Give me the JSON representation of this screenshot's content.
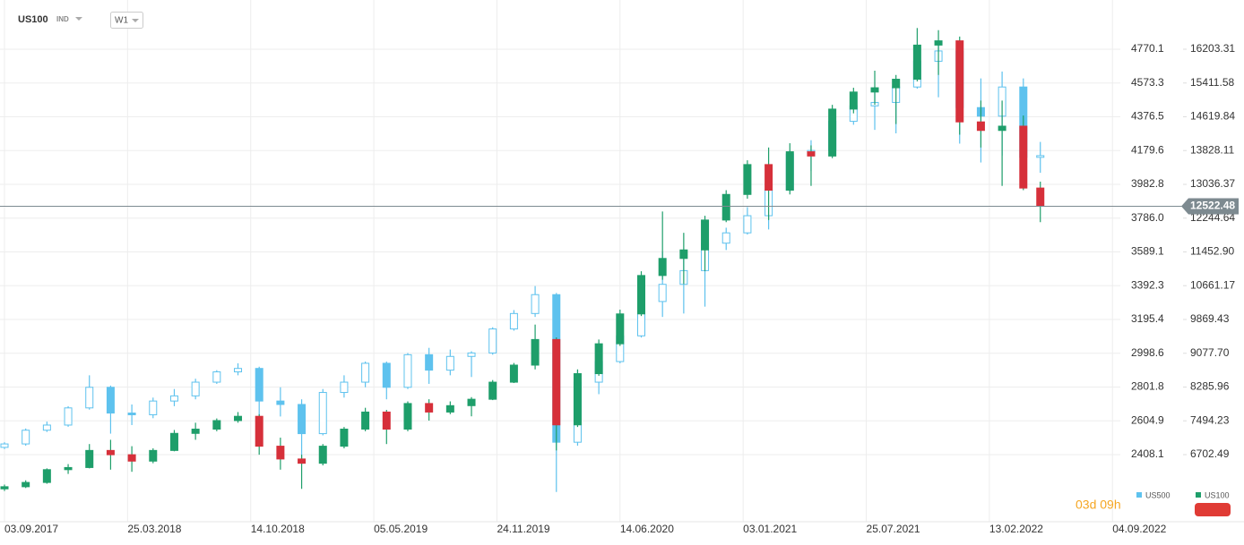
{
  "header": {
    "symbol": "US100",
    "symbol_type": "IND",
    "interval": "W1",
    "countdown": "03d 09h"
  },
  "chart_data": {
    "type": "candlestick",
    "x": [
      0,
      5,
      10,
      15,
      20,
      25,
      30,
      35,
      40,
      45,
      50,
      55,
      60,
      65,
      70,
      75,
      80,
      85,
      90,
      95,
      100,
      105,
      110,
      115,
      120,
      125,
      130,
      135,
      140,
      145,
      150,
      155,
      160,
      165,
      170,
      175,
      180,
      185,
      190,
      195,
      200,
      205,
      210,
      215,
      220,
      225,
      230,
      235,
      240,
      244
    ],
    "xlim": [
      0,
      262
    ],
    "xticks": [
      {
        "value": 0,
        "label": "03.09.2017"
      },
      {
        "value": 29,
        "label": "25.03.2018"
      },
      {
        "value": 58,
        "label": "14.10.2018"
      },
      {
        "value": 87,
        "label": "05.05.2019"
      },
      {
        "value": 116,
        "label": "24.11.2019"
      },
      {
        "value": 145,
        "label": "14.06.2020"
      },
      {
        "value": 174,
        "label": "03.01.2021"
      },
      {
        "value": 203,
        "label": "25.07.2021"
      },
      {
        "value": 232,
        "label": "13.02.2022"
      },
      {
        "value": 261,
        "label": "04.09.2022"
      }
    ],
    "ylim": [
      2058.4,
      5056.9
    ],
    "yticks": [
      2408.1,
      2604.9,
      2801.8,
      2998.6,
      3195.4,
      3392.3,
      3589.1,
      {
        "value": 3786.0,
        "label": "3786.0"
      },
      3982.8,
      4179.6,
      4376.5,
      4573.3,
      4770.1
    ],
    "y2lim": [
      5297.3,
      17356.8
    ],
    "y2ticks": [
      6702.49,
      7494.23,
      8285.96,
      {
        "value": 9077.7,
        "label": "9077.70"
      },
      9869.43,
      10661.17,
      {
        "value": 11452.9,
        "label": "11452.90"
      },
      12244.64,
      13036.37,
      13828.11,
      14619.84,
      15411.58,
      16203.31
    ],
    "grid": true,
    "current_price": 12522.48,
    "series": [
      {
        "name": "US500",
        "color": "#5ec2ee",
        "up_color": "#ffffff",
        "down_color": "#5ec2ee",
        "candles": [
          [
            2450,
            2480,
            2440,
            2470
          ],
          [
            2470,
            2560,
            2460,
            2550
          ],
          [
            2550,
            2600,
            2540,
            2580
          ],
          [
            2580,
            2690,
            2570,
            2680
          ],
          [
            2680,
            2870,
            2670,
            2800
          ],
          [
            2800,
            2810,
            2530,
            2650
          ],
          [
            2650,
            2700,
            2580,
            2640
          ],
          [
            2640,
            2740,
            2620,
            2720
          ],
          [
            2720,
            2790,
            2690,
            2750
          ],
          [
            2750,
            2850,
            2730,
            2830
          ],
          [
            2830,
            2900,
            2820,
            2890
          ],
          [
            2890,
            2940,
            2870,
            2910
          ],
          [
            2910,
            2920,
            2600,
            2720
          ],
          [
            2720,
            2800,
            2630,
            2700
          ],
          [
            2700,
            2730,
            2350,
            2530
          ],
          [
            2530,
            2790,
            2520,
            2770
          ],
          [
            2770,
            2870,
            2740,
            2830
          ],
          [
            2830,
            2950,
            2800,
            2940
          ],
          [
            2940,
            2950,
            2730,
            2800
          ],
          [
            2800,
            3000,
            2790,
            2990
          ],
          [
            2990,
            3030,
            2820,
            2900
          ],
          [
            2900,
            3020,
            2870,
            2980
          ],
          [
            2980,
            3010,
            2860,
            3000
          ],
          [
            3000,
            3150,
            2990,
            3140
          ],
          [
            3140,
            3250,
            3130,
            3230
          ],
          [
            3230,
            3390,
            3210,
            3340
          ],
          [
            3340,
            3350,
            2190,
            2480
          ],
          [
            2480,
            2900,
            2460,
            2830
          ],
          [
            2830,
            3000,
            2760,
            2950
          ],
          [
            2950,
            3230,
            2940,
            3100
          ],
          [
            3100,
            3350,
            3090,
            3300
          ],
          [
            3300,
            3590,
            3210,
            3400
          ],
          [
            3400,
            3550,
            3230,
            3480
          ],
          [
            3480,
            3650,
            3270,
            3640
          ],
          [
            3640,
            3730,
            3600,
            3700
          ],
          [
            3700,
            3850,
            3690,
            3800
          ],
          [
            3800,
            3990,
            3720,
            3950
          ],
          [
            3950,
            4180,
            3940,
            4160
          ],
          [
            4160,
            4240,
            4060,
            4180
          ],
          [
            4180,
            4360,
            4160,
            4350
          ],
          [
            4350,
            4460,
            4330,
            4440
          ],
          [
            4440,
            4550,
            4300,
            4460
          ],
          [
            4460,
            4560,
            4280,
            4550
          ],
          [
            4550,
            4740,
            4540,
            4700
          ],
          [
            4700,
            4810,
            4490,
            4760
          ],
          [
            4760,
            4820,
            4220,
            4430
          ],
          [
            4430,
            4600,
            4110,
            4380
          ],
          [
            4380,
            4640,
            4150,
            4550
          ],
          [
            4550,
            4600,
            4130,
            4140
          ],
          [
            4140,
            4230,
            4050,
            4150
          ]
        ]
      },
      {
        "name": "US100",
        "color": "#1e9e6a",
        "up_color": "#1e9e6a",
        "down_color": "#d6303a",
        "axis": "y2",
        "candles": [
          [
            5900,
            6000,
            5850,
            5950
          ],
          [
            5950,
            6100,
            5920,
            6050
          ],
          [
            6050,
            6380,
            6020,
            6350
          ],
          [
            6350,
            6480,
            6250,
            6400
          ],
          [
            6400,
            6950,
            6380,
            6800
          ],
          [
            6800,
            7050,
            6350,
            6700
          ],
          [
            6700,
            6900,
            6300,
            6550
          ],
          [
            6550,
            6850,
            6500,
            6800
          ],
          [
            6800,
            7280,
            6780,
            7200
          ],
          [
            7200,
            7450,
            7050,
            7300
          ],
          [
            7300,
            7550,
            7250,
            7500
          ],
          [
            7500,
            7700,
            7450,
            7600
          ],
          [
            7600,
            7650,
            6700,
            6900
          ],
          [
            6900,
            7100,
            6350,
            6600
          ],
          [
            6600,
            6700,
            5900,
            6500
          ],
          [
            6500,
            6950,
            6450,
            6900
          ],
          [
            6900,
            7350,
            6850,
            7300
          ],
          [
            7300,
            7800,
            7250,
            7700
          ],
          [
            7700,
            7750,
            6950,
            7300
          ],
          [
            7300,
            7950,
            7250,
            7900
          ],
          [
            7900,
            8000,
            7500,
            7700
          ],
          [
            7700,
            7950,
            7650,
            7850
          ],
          [
            7850,
            8050,
            7600,
            8000
          ],
          [
            8000,
            8450,
            7980,
            8400
          ],
          [
            8400,
            8850,
            8380,
            8800
          ],
          [
            8800,
            9750,
            8700,
            9400
          ],
          [
            9400,
            9450,
            6800,
            7400
          ],
          [
            7400,
            8700,
            7350,
            8600
          ],
          [
            8600,
            9400,
            8550,
            9300
          ],
          [
            9300,
            10100,
            9250,
            10000
          ],
          [
            10000,
            11000,
            9950,
            10900
          ],
          [
            10900,
            12400,
            10800,
            11300
          ],
          [
            11300,
            11900,
            10700,
            11500
          ],
          [
            11500,
            12300,
            11000,
            12200
          ],
          [
            12200,
            12900,
            12150,
            12800
          ],
          [
            12800,
            13600,
            12700,
            13500
          ],
          [
            13500,
            13900,
            12200,
            12900
          ],
          [
            12900,
            14000,
            12800,
            13800
          ],
          [
            13800,
            13950,
            13000,
            13700
          ],
          [
            13700,
            14900,
            13650,
            14800
          ],
          [
            14800,
            15300,
            14700,
            15200
          ],
          [
            15200,
            15700,
            14900,
            15300
          ],
          [
            15300,
            15600,
            14450,
            15500
          ],
          [
            15500,
            16700,
            15450,
            16300
          ],
          [
            16300,
            16650,
            15600,
            16400
          ],
          [
            16400,
            16500,
            14200,
            14500
          ],
          [
            14500,
            15000,
            13900,
            14300
          ],
          [
            14300,
            15000,
            13000,
            14400
          ],
          [
            14400,
            14650,
            12900,
            12950
          ],
          [
            12950,
            13100,
            12150,
            12522.48
          ]
        ]
      }
    ]
  }
}
